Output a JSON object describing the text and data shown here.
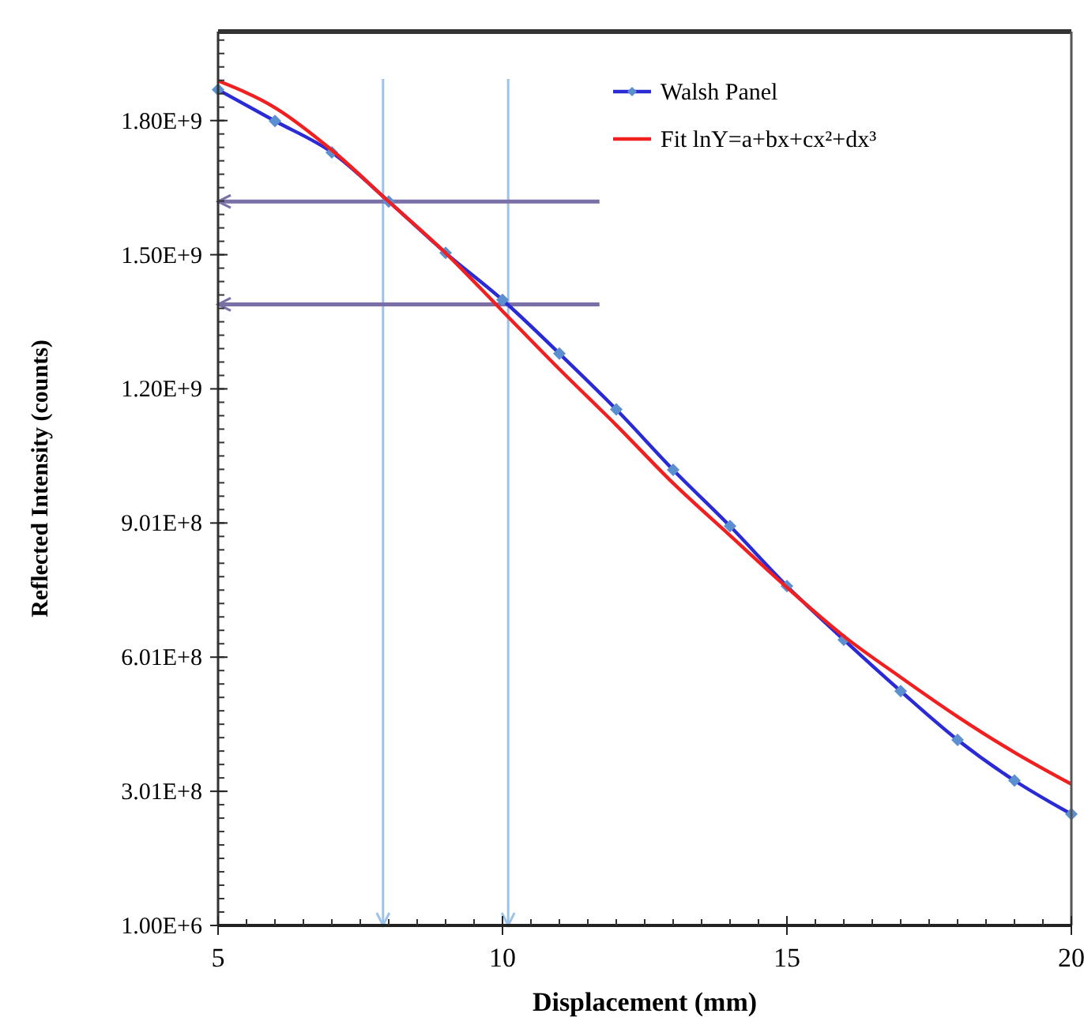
{
  "chart_data": {
    "type": "line",
    "xlabel": "Displacement (mm)",
    "ylabel": "Reflected Intensity (counts)",
    "x": [
      5,
      6,
      7,
      8,
      9,
      10,
      11,
      12,
      13,
      14,
      15,
      16,
      17,
      18,
      19,
      20
    ],
    "xlim": [
      5,
      20
    ],
    "xticks": [
      5,
      10,
      15,
      20
    ],
    "ylim": [
      1000000,
      2000000000
    ],
    "yticks": [
      {
        "value": 1000000,
        "label": "1.00E+6"
      },
      {
        "value": 301000000,
        "label": "3.01E+8"
      },
      {
        "value": 601000000,
        "label": "6.01E+8"
      },
      {
        "value": 901000000,
        "label": "9.01E+8"
      },
      {
        "value": 1201000000,
        "label": "1.20E+9"
      },
      {
        "value": 1501000000,
        "label": "1.50E+9"
      },
      {
        "value": 1801000000,
        "label": "1.80E+9"
      }
    ],
    "series": [
      {
        "name": "Walsh Panel",
        "color": "#2b2bd6",
        "marker": "diamond",
        "values": [
          1870000000,
          1800000000,
          1730000000,
          1620000000,
          1505000000,
          1400000000,
          1280000000,
          1155000000,
          1020000000,
          894000000,
          760000000,
          640000000,
          525000000,
          416000000,
          325000000,
          250000000
        ]
      },
      {
        "name": "Fit  lnY=a+bx+cx²+dx³",
        "color": "#f02020",
        "marker": "none",
        "values": [
          1890000000,
          1830000000,
          1735000000,
          1620000000,
          1505000000,
          1375000000,
          1245000000,
          1120000000,
          990000000,
          873000000,
          757000000,
          648000000,
          556000000,
          468000000,
          388000000,
          317000000
        ]
      }
    ],
    "ref_lines": [
      {
        "axis": "x",
        "value": 7.9,
        "color": "#9dc3e6"
      },
      {
        "axis": "x",
        "value": 10.1,
        "color": "#9dc3e6"
      },
      {
        "axis": "y",
        "value": 1620000000,
        "color": "#7b6fa8"
      },
      {
        "axis": "y",
        "value": 1390000000,
        "color": "#7b6fa8"
      }
    ],
    "legend": "top right",
    "grid": false
  }
}
